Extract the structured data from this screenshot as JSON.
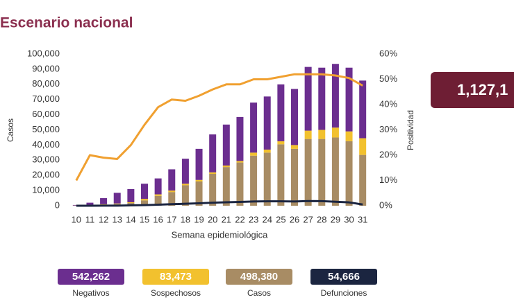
{
  "chart_data": {
    "type": "bar",
    "title": "Escenario nacional",
    "xlabel": "Semana epidemiológica",
    "ylabel": "Casos",
    "categories": [
      "10",
      "11",
      "12",
      "13",
      "14",
      "15",
      "16",
      "17",
      "18",
      "19",
      "20",
      "21",
      "22",
      "23",
      "24",
      "25",
      "26",
      "27",
      "28",
      "29",
      "30",
      "31"
    ],
    "ylim": [
      0,
      100000
    ],
    "yticks": [
      0,
      {
        "value": 10000,
        "label": "10,000"
      },
      {
        "value": 20000,
        "label": "20,000"
      },
      {
        "value": 30000,
        "label": "30,000"
      },
      {
        "value": 40000,
        "label": "40,000"
      },
      {
        "value": 50000,
        "label": "50,000"
      },
      {
        "value": 60000,
        "label": "60,000"
      },
      {
        "value": 70000,
        "label": "70,000"
      },
      {
        "value": 80000,
        "label": "80,000"
      },
      {
        "value": 90000,
        "label": "90,000"
      },
      {
        "value": 100000,
        "label": "100,000"
      }
    ],
    "y2lim": [
      0,
      60
    ],
    "y2ticks": [
      {
        "value": 0,
        "label": "0%"
      },
      {
        "value": 10,
        "label": "10%"
      },
      {
        "value": 20,
        "label": "20%"
      },
      {
        "value": 30,
        "label": "30%"
      },
      {
        "value": 40,
        "label": "40%"
      },
      {
        "value": 50,
        "label": "50%"
      },
      {
        "value": 60,
        "label": "60%"
      }
    ],
    "series": [
      {
        "name": "Negativos",
        "type": "bar",
        "color": "#6b2e8f",
        "total": {
          "value": 542262,
          "label": "542,262"
        },
        "values": [
          350,
          1500,
          4000,
          7000,
          8700,
          10000,
          10500,
          14000,
          16500,
          20500,
          25000,
          27000,
          29000,
          33000,
          35000,
          37500,
          37000,
          42000,
          41000,
          42000,
          42000,
          38000
        ]
      },
      {
        "name": "Sospechosos",
        "type": "bar",
        "color": "#f2c12e",
        "total": {
          "value": 83473,
          "label": "83,473"
        },
        "values": [
          50,
          200,
          300,
          300,
          500,
          1000,
          1000,
          1000,
          1000,
          1000,
          1000,
          1000,
          1000,
          2000,
          2000,
          2000,
          2500,
          5500,
          6000,
          6500,
          6500,
          11000
        ]
      },
      {
        "name": "Casos",
        "type": "bar",
        "color": "#a88c64",
        "total": {
          "value": 498380,
          "label": "498,380"
        },
        "values": [
          100,
          300,
          700,
          1200,
          1800,
          3500,
          6500,
          9000,
          13500,
          16000,
          21000,
          25500,
          28500,
          33000,
          35000,
          40500,
          37500,
          44000,
          44000,
          45000,
          42500,
          33500
        ]
      },
      {
        "name": "Defunciones",
        "type": "line",
        "color": "#1b2540",
        "total": {
          "value": 54666,
          "label": "54,666"
        },
        "values": [
          0,
          10,
          30,
          80,
          200,
          400,
          700,
          1000,
          1300,
          1600,
          2000,
          2300,
          2500,
          2800,
          2900,
          2900,
          2800,
          3100,
          3000,
          2600,
          2200,
          800
        ]
      },
      {
        "name": "Positividad",
        "type": "line",
        "axis": "y2",
        "color": "#f0a030",
        "values": [
          10,
          20,
          19,
          18.5,
          24,
          32,
          39,
          42,
          41.5,
          43.5,
          46,
          48,
          48,
          50,
          50,
          51,
          52,
          52,
          52,
          51.5,
          50.5,
          47.5
        ]
      }
    ],
    "highlight": "1,127,1"
  }
}
